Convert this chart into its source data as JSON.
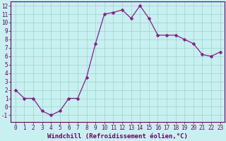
{
  "x": [
    0,
    1,
    2,
    3,
    4,
    5,
    6,
    7,
    8,
    9,
    10,
    11,
    12,
    13,
    14,
    15,
    16,
    17,
    18,
    19,
    20,
    21,
    22,
    23
  ],
  "y": [
    2.0,
    1.0,
    1.0,
    -0.5,
    -1.0,
    -0.5,
    1.0,
    1.0,
    3.5,
    7.5,
    11.0,
    11.2,
    11.5,
    10.5,
    12.0,
    10.5,
    8.5,
    8.5,
    8.5,
    8.0,
    7.5,
    6.2,
    6.0,
    6.5
  ],
  "line_color": "#8b1a8b",
  "marker": "D",
  "marker_size": 2.5,
  "background_color": "#c8f0f0",
  "grid_color": "#a0d8d8",
  "xlabel": "Windchill (Refroidissement éolien,°C)",
  "xlabel_fontsize": 6.5,
  "tick_fontsize": 5.5,
  "xtick_labels": [
    "0",
    "1",
    "2",
    "3",
    "4",
    "5",
    "6",
    "7",
    "8",
    "9",
    "10",
    "11",
    "12",
    "13",
    "14",
    "15",
    "16",
    "17",
    "18",
    "19",
    "20",
    "21",
    "22",
    "23"
  ],
  "ylim": [
    -1.8,
    12.5
  ],
  "xlim": [
    -0.5,
    23.5
  ],
  "yticks": [
    -1,
    0,
    1,
    2,
    3,
    4,
    5,
    6,
    7,
    8,
    9,
    10,
    11,
    12
  ],
  "title_color": "#660066",
  "spine_color": "#660066"
}
